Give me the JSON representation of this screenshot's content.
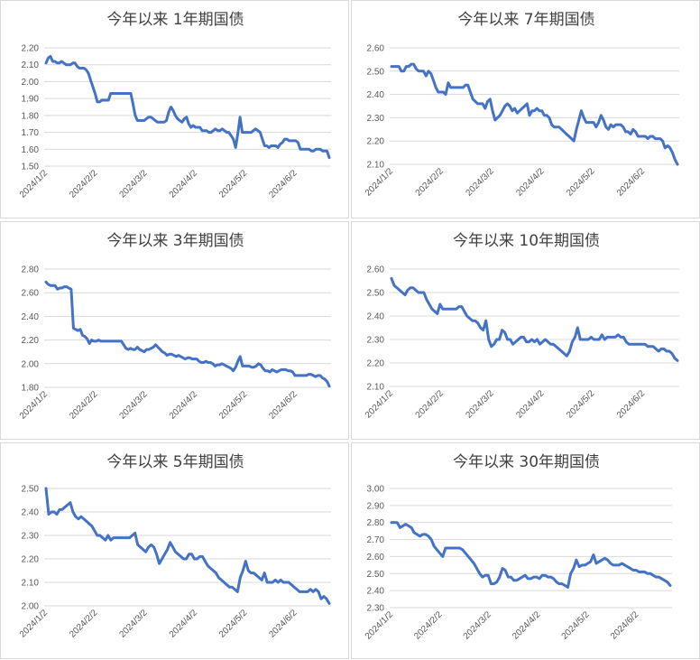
{
  "chart_data": [
    {
      "type": "line",
      "title": "今年以来 1年期国债",
      "xticks": [
        "2024/1/2",
        "2024/2/2",
        "2024/3/2",
        "2024/4/2",
        "2024/5/2",
        "2024/6/2"
      ],
      "ylim": [
        1.5,
        2.2
      ],
      "yticks": [
        "1.50",
        "1.60",
        "1.70",
        "1.80",
        "1.90",
        "2.00",
        "2.10",
        "2.20"
      ],
      "grid": true,
      "color": "#4472c4",
      "series": [
        {
          "values": [
            2.11,
            2.14,
            2.15,
            2.12,
            2.12,
            2.11,
            2.11,
            2.12,
            2.11,
            2.1,
            2.1,
            2.1,
            2.11,
            2.11,
            2.09,
            2.08,
            2.08,
            2.08,
            2.07,
            2.05,
            2.01,
            1.97,
            1.93,
            1.88,
            1.88,
            1.89,
            1.89,
            1.89,
            1.89,
            1.93,
            1.93,
            1.93,
            1.93,
            1.93,
            1.93,
            1.93,
            1.93,
            1.93,
            1.93,
            1.87,
            1.8,
            1.77,
            1.77,
            1.77,
            1.77,
            1.78,
            1.79,
            1.79,
            1.78,
            1.77,
            1.76,
            1.76,
            1.76,
            1.76,
            1.77,
            1.82,
            1.85,
            1.83,
            1.8,
            1.78,
            1.77,
            1.76,
            1.78,
            1.79,
            1.75,
            1.73,
            1.74,
            1.73,
            1.73,
            1.73,
            1.71,
            1.71,
            1.71,
            1.7,
            1.7,
            1.71,
            1.72,
            1.71,
            1.71,
            1.72,
            1.71,
            1.7,
            1.7,
            1.68,
            1.66,
            1.61,
            1.69,
            1.79,
            1.7,
            1.7,
            1.7,
            1.7,
            1.7,
            1.71,
            1.72,
            1.71,
            1.7,
            1.66,
            1.62,
            1.62,
            1.61,
            1.62,
            1.62,
            1.62,
            1.61,
            1.63,
            1.64,
            1.66,
            1.66,
            1.65,
            1.65,
            1.65,
            1.65,
            1.64,
            1.6,
            1.6,
            1.6,
            1.6,
            1.6,
            1.59,
            1.59,
            1.6,
            1.6,
            1.6,
            1.59,
            1.59,
            1.59,
            1.55
          ]
        }
      ]
    },
    {
      "type": "line",
      "title": "今年以来 7年期国债",
      "xticks": [
        "2024/1/2",
        "2024/2/2",
        "2024/3/2",
        "2024/4/2",
        "2024/5/2",
        "2024/6/2"
      ],
      "ylim": [
        2.1,
        2.6
      ],
      "yticks": [
        "2.10",
        "2.20",
        "2.30",
        "2.40",
        "2.50",
        "2.60"
      ],
      "grid": true,
      "color": "#4472c4",
      "series": [
        {
          "values": [
            2.52,
            2.52,
            2.52,
            2.52,
            2.5,
            2.5,
            2.52,
            2.52,
            2.53,
            2.53,
            2.51,
            2.5,
            2.5,
            2.5,
            2.48,
            2.5,
            2.49,
            2.46,
            2.43,
            2.41,
            2.41,
            2.41,
            2.4,
            2.45,
            2.43,
            2.43,
            2.43,
            2.43,
            2.43,
            2.43,
            2.44,
            2.44,
            2.41,
            2.38,
            2.37,
            2.36,
            2.36,
            2.36,
            2.34,
            2.37,
            2.38,
            2.33,
            2.29,
            2.3,
            2.31,
            2.33,
            2.35,
            2.36,
            2.35,
            2.33,
            2.34,
            2.32,
            2.33,
            2.34,
            2.35,
            2.36,
            2.31,
            2.33,
            2.33,
            2.34,
            2.33,
            2.33,
            2.31,
            2.31,
            2.3,
            2.27,
            2.26,
            2.26,
            2.26,
            2.25,
            2.24,
            2.23,
            2.22,
            2.21,
            2.2,
            2.25,
            2.29,
            2.33,
            2.3,
            2.28,
            2.28,
            2.28,
            2.28,
            2.26,
            2.28,
            2.31,
            2.29,
            2.26,
            2.25,
            2.27,
            2.26,
            2.27,
            2.27,
            2.27,
            2.26,
            2.24,
            2.24,
            2.23,
            2.25,
            2.24,
            2.22,
            2.22,
            2.22,
            2.22,
            2.21,
            2.22,
            2.22,
            2.21,
            2.21,
            2.21,
            2.2,
            2.17,
            2.18,
            2.17,
            2.15,
            2.12,
            2.1
          ]
        }
      ]
    },
    {
      "type": "line",
      "title": "今年以来 3年期国债",
      "xticks": [
        "2024/1/2",
        "2024/2/2",
        "2024/3/2",
        "2024/4/2",
        "2024/5/2",
        "2024/6/2"
      ],
      "ylim": [
        1.8,
        2.8
      ],
      "yticks": [
        "1.80",
        "2.00",
        "2.20",
        "2.40",
        "2.60",
        "2.80"
      ],
      "grid": true,
      "color": "#4472c4",
      "series": [
        {
          "values": [
            2.69,
            2.67,
            2.66,
            2.66,
            2.66,
            2.63,
            2.64,
            2.64,
            2.65,
            2.65,
            2.64,
            2.63,
            2.3,
            2.29,
            2.28,
            2.29,
            2.24,
            2.23,
            2.21,
            2.17,
            2.2,
            2.19,
            2.19,
            2.2,
            2.19,
            2.19,
            2.19,
            2.19,
            2.19,
            2.19,
            2.19,
            2.19,
            2.19,
            2.19,
            2.16,
            2.13,
            2.12,
            2.13,
            2.12,
            2.12,
            2.14,
            2.12,
            2.11,
            2.1,
            2.12,
            2.12,
            2.13,
            2.14,
            2.16,
            2.14,
            2.12,
            2.1,
            2.09,
            2.07,
            2.08,
            2.08,
            2.07,
            2.06,
            2.07,
            2.06,
            2.05,
            2.04,
            2.05,
            2.05,
            2.04,
            2.04,
            2.04,
            2.02,
            2.01,
            2.01,
            2.02,
            2.01,
            2.01,
            2.0,
            1.98,
            1.99,
            1.99,
            2.0,
            1.99,
            1.98,
            1.97,
            1.96,
            1.94,
            1.97,
            2.02,
            2.06,
            1.98,
            1.98,
            1.98,
            1.98,
            1.97,
            1.97,
            1.98,
            2.0,
            1.99,
            1.96,
            1.94,
            1.94,
            1.93,
            1.95,
            1.94,
            1.93,
            1.94,
            1.95,
            1.95,
            1.95,
            1.94,
            1.94,
            1.93,
            1.9,
            1.9,
            1.9,
            1.9,
            1.9,
            1.9,
            1.91,
            1.91,
            1.9,
            1.89,
            1.9,
            1.9,
            1.88,
            1.87,
            1.85,
            1.81
          ]
        }
      ]
    },
    {
      "type": "line",
      "title": "今年以来 10年期国债",
      "xticks": [
        "2024/1/2",
        "2024/2/2",
        "2024/3/2",
        "2024/4/2",
        "2024/5/2",
        "2024/6/2"
      ],
      "ylim": [
        2.1,
        2.6
      ],
      "yticks": [
        "2.10",
        "2.20",
        "2.30",
        "2.40",
        "2.50",
        "2.60"
      ],
      "grid": true,
      "color": "#4472c4",
      "series": [
        {
          "values": [
            2.56,
            2.53,
            2.52,
            2.51,
            2.5,
            2.49,
            2.51,
            2.52,
            2.52,
            2.51,
            2.5,
            2.5,
            2.5,
            2.47,
            2.45,
            2.43,
            2.42,
            2.41,
            2.45,
            2.43,
            2.43,
            2.43,
            2.43,
            2.43,
            2.43,
            2.44,
            2.44,
            2.42,
            2.4,
            2.39,
            2.38,
            2.38,
            2.37,
            2.35,
            2.34,
            2.38,
            2.3,
            2.27,
            2.28,
            2.3,
            2.3,
            2.34,
            2.33,
            2.3,
            2.3,
            2.28,
            2.29,
            2.3,
            2.31,
            2.31,
            2.29,
            2.29,
            2.3,
            2.29,
            2.3,
            2.28,
            2.29,
            2.3,
            2.29,
            2.28,
            2.28,
            2.27,
            2.26,
            2.25,
            2.24,
            2.23,
            2.25,
            2.29,
            2.31,
            2.35,
            2.3,
            2.3,
            2.3,
            2.3,
            2.31,
            2.3,
            2.3,
            2.3,
            2.32,
            2.3,
            2.31,
            2.31,
            2.31,
            2.31,
            2.32,
            2.31,
            2.31,
            2.29,
            2.28,
            2.28,
            2.28,
            2.28,
            2.28,
            2.28,
            2.28,
            2.27,
            2.27,
            2.27,
            2.26,
            2.25,
            2.26,
            2.26,
            2.25,
            2.25,
            2.24,
            2.22,
            2.21
          ]
        }
      ]
    },
    {
      "type": "line",
      "title": "今年以来 5年期国债",
      "xticks": [
        "2024/1/2",
        "2024/2/2",
        "2024/3/2",
        "2024/4/2",
        "2024/5/2",
        "2024/6/2"
      ],
      "ylim": [
        2.0,
        2.5
      ],
      "yticks": [
        "2.00",
        "2.10",
        "2.20",
        "2.30",
        "2.40",
        "2.50"
      ],
      "grid": true,
      "color": "#4472c4",
      "series": [
        {
          "values": [
            2.5,
            2.39,
            2.4,
            2.4,
            2.39,
            2.41,
            2.41,
            2.42,
            2.43,
            2.44,
            2.4,
            2.38,
            2.37,
            2.38,
            2.37,
            2.36,
            2.35,
            2.34,
            2.32,
            2.3,
            2.3,
            2.29,
            2.28,
            2.3,
            2.28,
            2.29,
            2.29,
            2.29,
            2.29,
            2.29,
            2.29,
            2.29,
            2.3,
            2.31,
            2.26,
            2.25,
            2.24,
            2.23,
            2.25,
            2.26,
            2.25,
            2.22,
            2.18,
            2.2,
            2.22,
            2.24,
            2.27,
            2.25,
            2.23,
            2.22,
            2.21,
            2.2,
            2.2,
            2.22,
            2.22,
            2.2,
            2.2,
            2.21,
            2.21,
            2.19,
            2.17,
            2.16,
            2.15,
            2.14,
            2.12,
            2.11,
            2.1,
            2.09,
            2.08,
            2.08,
            2.07,
            2.06,
            2.12,
            2.15,
            2.19,
            2.15,
            2.14,
            2.14,
            2.13,
            2.12,
            2.11,
            2.14,
            2.1,
            2.1,
            2.1,
            2.11,
            2.1,
            2.11,
            2.1,
            2.1,
            2.1,
            2.09,
            2.08,
            2.07,
            2.06,
            2.06,
            2.06,
            2.06,
            2.07,
            2.06,
            2.07,
            2.06,
            2.03,
            2.04,
            2.03,
            2.01
          ]
        }
      ]
    },
    {
      "type": "line",
      "title": "今年以来 30年期国债",
      "xticks": [
        "2024/1/2",
        "2024/2/2",
        "2024/3/2",
        "2024/4/2",
        "2024/5/2",
        "2024/6/2"
      ],
      "ylim": [
        2.3,
        3.0
      ],
      "yticks": [
        "2.30",
        "2.40",
        "2.50",
        "2.60",
        "2.70",
        "2.80",
        "2.90",
        "3.00"
      ],
      "grid": true,
      "color": "#4472c4",
      "series": [
        {
          "values": [
            2.8,
            2.8,
            2.8,
            2.77,
            2.78,
            2.79,
            2.78,
            2.77,
            2.74,
            2.73,
            2.72,
            2.73,
            2.73,
            2.72,
            2.7,
            2.66,
            2.64,
            2.62,
            2.6,
            2.65,
            2.65,
            2.65,
            2.65,
            2.65,
            2.65,
            2.64,
            2.62,
            2.6,
            2.58,
            2.56,
            2.53,
            2.5,
            2.48,
            2.49,
            2.49,
            2.44,
            2.44,
            2.45,
            2.48,
            2.53,
            2.52,
            2.48,
            2.48,
            2.46,
            2.46,
            2.47,
            2.48,
            2.49,
            2.47,
            2.47,
            2.48,
            2.48,
            2.47,
            2.49,
            2.49,
            2.48,
            2.48,
            2.47,
            2.45,
            2.44,
            2.44,
            2.43,
            2.42,
            2.5,
            2.53,
            2.58,
            2.54,
            2.55,
            2.55,
            2.56,
            2.57,
            2.61,
            2.56,
            2.57,
            2.58,
            2.59,
            2.58,
            2.56,
            2.55,
            2.55,
            2.55,
            2.56,
            2.55,
            2.54,
            2.53,
            2.52,
            2.52,
            2.51,
            2.51,
            2.51,
            2.5,
            2.5,
            2.49,
            2.48,
            2.48,
            2.47,
            2.46,
            2.45,
            2.43
          ]
        }
      ]
    }
  ]
}
